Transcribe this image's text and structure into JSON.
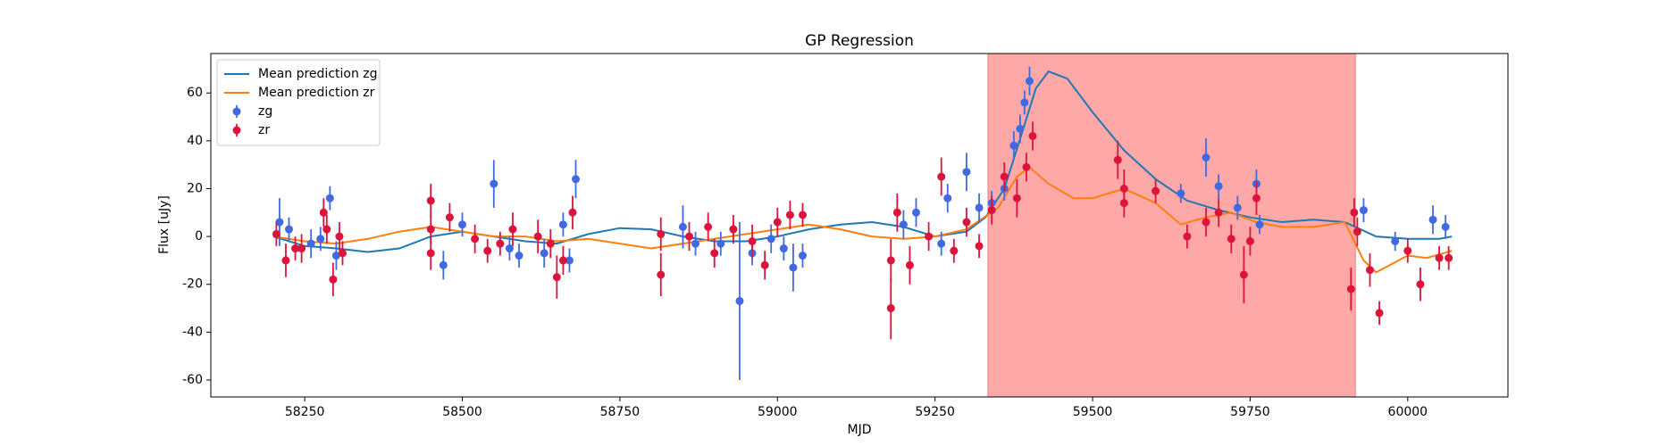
{
  "chart_data": {
    "type": "scatter",
    "title": "GP Regression",
    "x_label": "MJD",
    "y_label": "Flux [uJy]",
    "xlim": [
      58101,
      60159
    ],
    "ylim": [
      -67.1,
      76.5
    ],
    "xticks": [
      58250,
      58500,
      58750,
      59000,
      59250,
      59500,
      59750,
      60000
    ],
    "yticks": [
      -60,
      -40,
      -20,
      0,
      20,
      40,
      60
    ],
    "span": [
      59334,
      59917
    ],
    "span_color": "#ffa8a8",
    "legend": "upper left",
    "series": [
      {
        "name": "Mean prediction zg",
        "type": "line",
        "color": "#1f77b4",
        "x": [
          58200,
          58250,
          58300,
          58350,
          58400,
          58450,
          58500,
          58550,
          58600,
          58650,
          58700,
          58750,
          58800,
          58850,
          58900,
          58950,
          59000,
          59050,
          59100,
          59150,
          59200,
          59250,
          59300,
          59330,
          59360,
          59390,
          59410,
          59430,
          59460,
          59500,
          59550,
          59600,
          59650,
          59700,
          59750,
          59800,
          59850,
          59900,
          59950,
          60000,
          60050,
          60070
        ],
        "values": [
          0,
          -4,
          -5,
          -6.5,
          -5,
          0,
          2,
          0,
          -2,
          -3,
          1,
          3.5,
          3,
          0,
          -2,
          -2,
          0,
          3,
          5,
          6,
          4,
          0,
          2,
          8,
          20,
          45,
          62,
          69,
          66,
          52,
          36,
          24,
          15,
          11,
          8,
          6,
          7,
          6,
          0,
          -1,
          -1,
          0
        ]
      },
      {
        "name": "Mean prediction zr",
        "type": "line",
        "color": "#ff7f0e",
        "x": [
          58200,
          58250,
          58300,
          58350,
          58400,
          58450,
          58500,
          58550,
          58600,
          58650,
          58700,
          58750,
          58800,
          58850,
          58900,
          58950,
          59000,
          59050,
          59100,
          59150,
          59200,
          59250,
          59300,
          59350,
          59380,
          59400,
          59430,
          59470,
          59500,
          59550,
          59600,
          59640,
          59680,
          59720,
          59760,
          59800,
          59850,
          59900,
          59930,
          59950,
          60000,
          60030,
          60070
        ],
        "values": [
          0,
          -2,
          -3,
          -1,
          2,
          4,
          2,
          0,
          0,
          -2,
          -1,
          -3,
          -5,
          -3,
          -1,
          1,
          3,
          5,
          3,
          0,
          -1,
          0,
          3,
          12,
          25,
          29,
          22,
          16,
          16,
          20,
          14,
          5,
          8,
          10,
          6,
          4,
          4,
          6,
          -10,
          -15,
          -8,
          -9,
          -6
        ]
      },
      {
        "name": "zg",
        "type": "errorbar",
        "color": "#4169e1",
        "x": [
          58210,
          58225,
          58260,
          58275,
          58290,
          58300,
          58470,
          58500,
          58550,
          58575,
          58590,
          58630,
          58660,
          58670,
          58680,
          58850,
          58870,
          58910,
          58940,
          58960,
          58990,
          59010,
          59025,
          59040,
          59200,
          59220,
          59260,
          59270,
          59300,
          59320,
          59340,
          59360,
          59375,
          59385,
          59392,
          59400,
          59640,
          59680,
          59700,
          59730,
          59760,
          59765,
          59930,
          59980,
          60040,
          60060
        ],
        "values": [
          6,
          3,
          -3,
          -1,
          16,
          -8,
          -12,
          5,
          22,
          -5,
          -8,
          -7,
          5,
          -10,
          24,
          4,
          -3,
          -3,
          -27,
          -7,
          -1,
          -5,
          -13,
          -8,
          5,
          10,
          -3,
          16,
          27,
          12,
          14,
          20,
          38,
          45,
          56,
          65,
          18,
          33,
          21,
          12,
          22,
          5,
          11,
          -2,
          7,
          4
        ],
        "errors": [
          10,
          5,
          6,
          5,
          5,
          6,
          6,
          5,
          10,
          5,
          5,
          6,
          5,
          5,
          8,
          9,
          5,
          5,
          33,
          5,
          6,
          5,
          10,
          5,
          6,
          6,
          5,
          6,
          8,
          6,
          5,
          5,
          6,
          6,
          5,
          6,
          4,
          8,
          5,
          5,
          6,
          4,
          5,
          4,
          6,
          5
        ]
      },
      {
        "name": "zr",
        "type": "errorbar",
        "color": "#dc143c",
        "x": [
          58205,
          58220,
          58235,
          58245,
          58280,
          58285,
          58295,
          58305,
          58310,
          58450,
          58450,
          58450,
          58480,
          58520,
          58540,
          58560,
          58580,
          58620,
          58640,
          58650,
          58660,
          58675,
          58815,
          58815,
          58860,
          58890,
          58900,
          58930,
          58960,
          58980,
          59000,
          59020,
          59040,
          59180,
          59180,
          59190,
          59210,
          59240,
          59260,
          59280,
          59300,
          59320,
          59340,
          59360,
          59380,
          59395,
          59405,
          59540,
          59550,
          59550,
          59600,
          59650,
          59680,
          59700,
          59720,
          59740,
          59750,
          59760,
          59910,
          59915,
          59920,
          59940,
          59955,
          60000,
          60020,
          60050,
          60065
        ],
        "values": [
          1,
          -10,
          -5,
          -5,
          10,
          3,
          -18,
          0,
          -7,
          15,
          -7,
          3,
          8,
          -1,
          -6,
          -3,
          3,
          0,
          -3,
          -17,
          -10,
          10,
          -16,
          1,
          0,
          4,
          -7,
          3,
          -2,
          -12,
          6,
          9,
          9,
          -30,
          -10,
          10,
          -12,
          0,
          25,
          -6,
          6,
          -4,
          11,
          25,
          16,
          29,
          42,
          32,
          20,
          14,
          19,
          0,
          6,
          10,
          -1,
          -16,
          -2,
          16,
          -22,
          10,
          2,
          -14,
          -32,
          -6,
          -20,
          -9,
          -9
        ],
        "errors": [
          5,
          7,
          5,
          6,
          6,
          6,
          7,
          6,
          5,
          7,
          7,
          6,
          6,
          6,
          5,
          5,
          7,
          7,
          6,
          9,
          6,
          7,
          9,
          7,
          6,
          6,
          6,
          6,
          7,
          6,
          6,
          6,
          5,
          13,
          9,
          8,
          8,
          6,
          8,
          5,
          6,
          5,
          6,
          6,
          8,
          6,
          6,
          8,
          8,
          6,
          5,
          5,
          6,
          6,
          6,
          12,
          6,
          7,
          9,
          6,
          6,
          7,
          5,
          5,
          7,
          5,
          5
        ]
      }
    ]
  }
}
